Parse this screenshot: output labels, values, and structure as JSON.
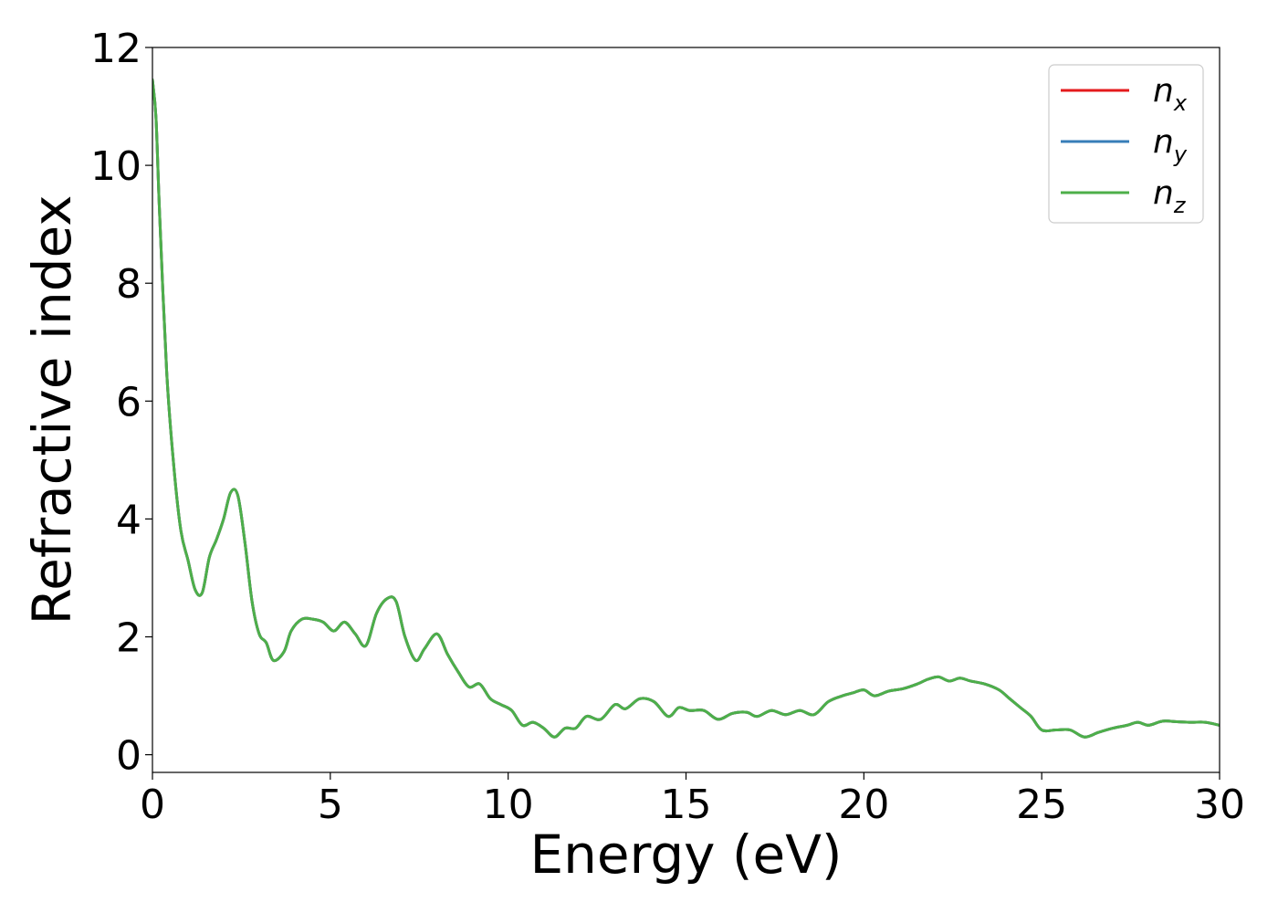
{
  "chart_data": {
    "type": "line",
    "title": "",
    "xlabel": "Energy (eV)",
    "ylabel": "Refractive index",
    "xlim": [
      0,
      30
    ],
    "ylim": [
      -0.3,
      12
    ],
    "xticks": [
      "0",
      "5",
      "10",
      "15",
      "20",
      "25",
      "30"
    ],
    "yticks": [
      "0",
      "2",
      "4",
      "6",
      "8",
      "10",
      "12"
    ],
    "grid": false,
    "legend_position": "top-right",
    "x": [
      0,
      0.1,
      0.2,
      0.4,
      0.6,
      0.8,
      1.0,
      1.2,
      1.4,
      1.6,
      1.8,
      2.0,
      2.2,
      2.4,
      2.6,
      2.8,
      3.0,
      3.2,
      3.4,
      3.7,
      3.9,
      4.2,
      4.5,
      4.8,
      5.1,
      5.4,
      5.7,
      6.0,
      6.3,
      6.6,
      6.85,
      7.1,
      7.4,
      7.65,
      8.0,
      8.3,
      8.6,
      8.9,
      9.2,
      9.5,
      9.8,
      10.1,
      10.4,
      10.7,
      11.0,
      11.3,
      11.6,
      11.9,
      12.2,
      12.6,
      13.0,
      13.3,
      13.7,
      14.1,
      14.5,
      14.8,
      15.1,
      15.5,
      15.9,
      16.3,
      16.7,
      17.0,
      17.4,
      17.8,
      18.2,
      18.6,
      19.0,
      19.4,
      19.7,
      20.0,
      20.3,
      20.7,
      21.1,
      21.5,
      21.8,
      22.1,
      22.4,
      22.7,
      23.0,
      23.4,
      23.8,
      24.1,
      24.4,
      24.7,
      25.0,
      25.4,
      25.8,
      26.2,
      26.6,
      27.0,
      27.4,
      27.7,
      28.0,
      28.4,
      28.8,
      29.2,
      29.6,
      30.0
    ],
    "series": [
      {
        "name": "n_x",
        "label_base": "n",
        "label_sub": "x",
        "color": "#e41a1c"
      },
      {
        "name": "n_y",
        "label_base": "n",
        "label_sub": "y",
        "color": "#377eb8"
      },
      {
        "name": "n_z",
        "label_base": "n",
        "label_sub": "z",
        "color": "#4daf4a"
      }
    ],
    "y": [
      11.45,
      10.8,
      9.2,
      6.5,
      4.9,
      3.8,
      3.3,
      2.8,
      2.75,
      3.35,
      3.65,
      4.0,
      4.45,
      4.4,
      3.6,
      2.6,
      2.05,
      1.9,
      1.6,
      1.75,
      2.1,
      2.3,
      2.3,
      2.25,
      2.1,
      2.25,
      2.05,
      1.85,
      2.4,
      2.65,
      2.6,
      2.0,
      1.6,
      1.8,
      2.05,
      1.7,
      1.4,
      1.15,
      1.2,
      0.95,
      0.85,
      0.75,
      0.5,
      0.55,
      0.45,
      0.3,
      0.45,
      0.45,
      0.65,
      0.6,
      0.85,
      0.78,
      0.95,
      0.9,
      0.65,
      0.8,
      0.75,
      0.75,
      0.6,
      0.7,
      0.72,
      0.65,
      0.75,
      0.68,
      0.75,
      0.68,
      0.9,
      1.0,
      1.05,
      1.1,
      1.0,
      1.08,
      1.12,
      1.2,
      1.28,
      1.32,
      1.25,
      1.3,
      1.25,
      1.2,
      1.1,
      0.95,
      0.8,
      0.65,
      0.42,
      0.42,
      0.42,
      0.3,
      0.38,
      0.45,
      0.5,
      0.55,
      0.5,
      0.57,
      0.56,
      0.55,
      0.55,
      0.5
    ]
  }
}
